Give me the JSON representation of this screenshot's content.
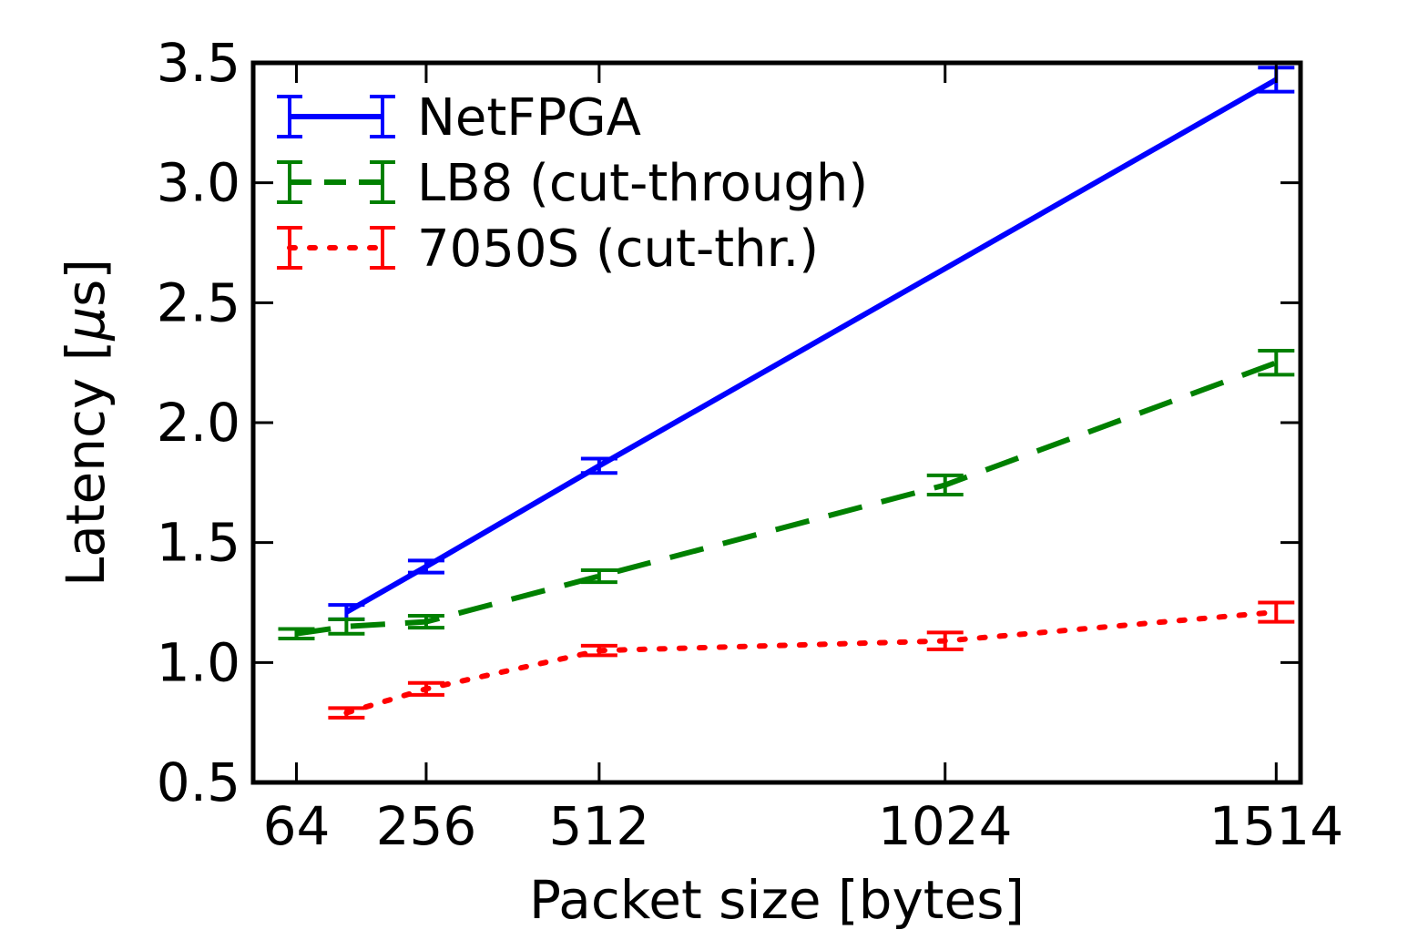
{
  "chart_data": {
    "type": "line",
    "title": "",
    "xlabel": "Packet size [bytes]",
    "ylabel": "Latency [μs]",
    "ylabel_prefix": "Latency [",
    "ylabel_mu": "μ",
    "ylabel_suffix": "s]",
    "xlim": [
      0,
      1550
    ],
    "ylim": [
      0.5,
      3.5
    ],
    "xticks": [
      64,
      256,
      512,
      1024,
      1514
    ],
    "xtick_labels": [
      "64",
      "256",
      "512",
      "1024",
      "1514"
    ],
    "yticks": [
      0.5,
      1.0,
      1.5,
      2.0,
      2.5,
      3.0,
      3.5
    ],
    "ytick_labels": [
      "0.5",
      "1.0",
      "1.5",
      "2.0",
      "2.5",
      "3.0",
      "3.5"
    ],
    "grid": false,
    "legend_position": "top-left",
    "error_bars": true,
    "series": [
      {
        "name": "NetFPGA",
        "color": "#0000ff",
        "linestyle": "solid",
        "x": [
          138,
          256,
          512,
          1514
        ],
        "y": [
          1.21,
          1.4,
          1.82,
          3.43
        ],
        "err": [
          0.03,
          0.025,
          0.03,
          0.05
        ]
      },
      {
        "name": "LB8 (cut-through)",
        "color": "#008000",
        "linestyle": "dashed",
        "x": [
          64,
          138,
          256,
          512,
          1024,
          1514
        ],
        "y": [
          1.12,
          1.15,
          1.17,
          1.36,
          1.74,
          2.25
        ],
        "err": [
          0.02,
          0.03,
          0.025,
          0.025,
          0.04,
          0.05
        ]
      },
      {
        "name": "7050S (cut-thr.)",
        "color": "#ff0000",
        "linestyle": "dotted",
        "x": [
          138,
          256,
          512,
          1024,
          1514
        ],
        "y": [
          0.79,
          0.89,
          1.05,
          1.09,
          1.21
        ],
        "err": [
          0.02,
          0.025,
          0.02,
          0.035,
          0.04
        ]
      }
    ]
  }
}
